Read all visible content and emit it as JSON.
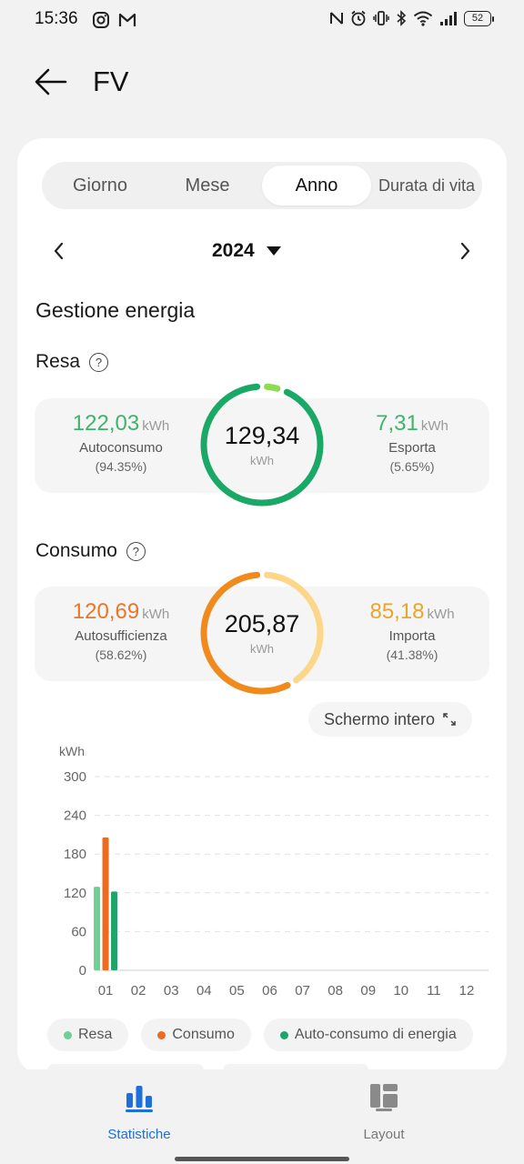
{
  "status": {
    "time": "15:36",
    "battery": "52"
  },
  "header": {
    "title": "FV"
  },
  "tabs": [
    {
      "label": "Giorno",
      "active": false
    },
    {
      "label": "Mese",
      "active": false
    },
    {
      "label": "Anno",
      "active": true
    },
    {
      "label": "Durata di vita",
      "active": false
    }
  ],
  "period": {
    "year": "2024"
  },
  "section_title": "Gestione energia",
  "resa": {
    "title": "Resa",
    "help": "?",
    "total": "129,34",
    "total_unit": "kWh",
    "left": {
      "value": "122,03",
      "unit": "kWh",
      "label": "Autoconsumo",
      "pct": "(94.35%)"
    },
    "right": {
      "value": "7,31",
      "unit": "kWh",
      "label": "Esporta",
      "pct": "(5.65%)"
    },
    "share_left": 0.9435,
    "colors": {
      "main": "#1aa866",
      "secondary": "#8ddc4f"
    }
  },
  "consumo": {
    "title": "Consumo",
    "help": "?",
    "total": "205,87",
    "total_unit": "kWh",
    "left": {
      "value": "120,69",
      "unit": "kWh",
      "label": "Autosufficienza",
      "pct": "(58.62%)"
    },
    "right": {
      "value": "85,18",
      "unit": "kWh",
      "label": "Importa",
      "pct": "(41.38%)"
    },
    "share_left": 0.5862,
    "colors": {
      "main": "#f08a1c",
      "secondary": "#fcd789"
    }
  },
  "fullscreen": {
    "label": "Schermo intero",
    "icon": "expand-icon"
  },
  "chart_data": {
    "type": "bar",
    "ylabel": "kWh",
    "ylim": [
      0,
      300
    ],
    "yticks": [
      "0",
      "60",
      "120",
      "180",
      "240",
      "300"
    ],
    "categories": [
      "01",
      "02",
      "03",
      "04",
      "05",
      "06",
      "07",
      "08",
      "09",
      "10",
      "11",
      "12"
    ],
    "series": [
      {
        "name": "Resa",
        "color": "#6fcf97",
        "values": [
          129.34,
          0,
          0,
          0,
          0,
          0,
          0,
          0,
          0,
          0,
          0,
          0
        ]
      },
      {
        "name": "Consumo",
        "color": "#ee6a1f",
        "values": [
          205.87,
          0,
          0,
          0,
          0,
          0,
          0,
          0,
          0,
          0,
          0,
          0
        ]
      },
      {
        "name": "Auto-consumo di energia",
        "color": "#1fa56a",
        "values": [
          122.03,
          0,
          0,
          0,
          0,
          0,
          0,
          0,
          0,
          0,
          0,
          0
        ]
      }
    ],
    "grid": true,
    "legend": "bottom"
  },
  "nav": {
    "stats_label": "Statistiche",
    "layout_label": "Layout",
    "active_color": "#1e6fd9"
  }
}
